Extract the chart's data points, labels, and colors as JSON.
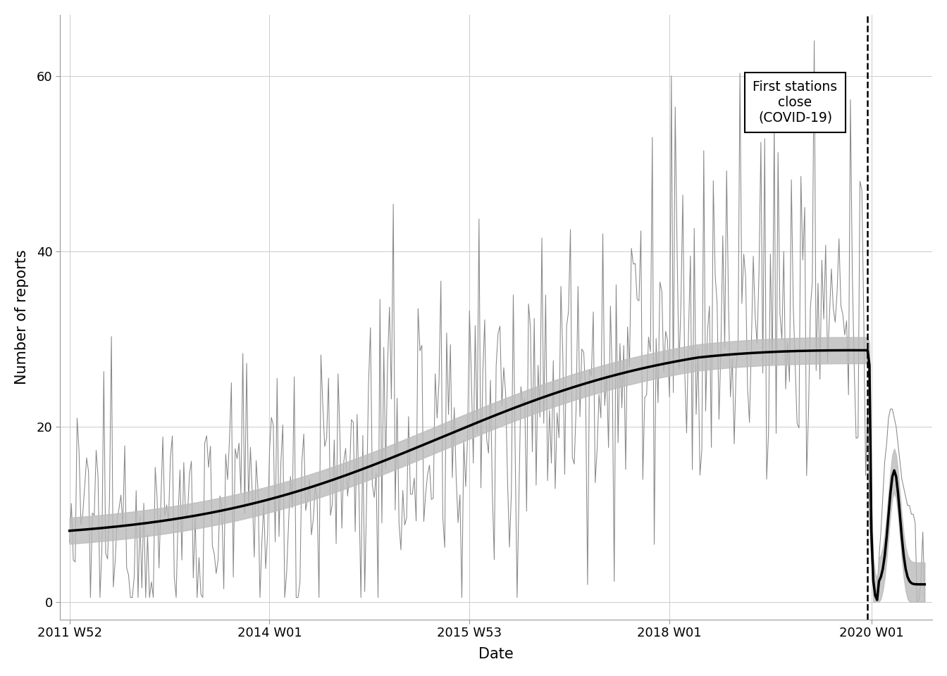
{
  "xlabel": "Date",
  "ylabel": "Number of reports",
  "ylim": [
    -2,
    67
  ],
  "yticks": [
    0,
    20,
    40,
    60
  ],
  "xtick_labels": [
    "2011 W52",
    "2014 W01",
    "2015 W53",
    "2018 W01",
    "2020 W01"
  ],
  "raw_color": "#888888",
  "smooth_color": "#000000",
  "ci_color": "#bbbbbb",
  "annotation_text": "First stations\nclose\n(COVID-19)",
  "background_color": "#ffffff",
  "grid_color": "#cccccc",
  "figsize": [
    13.44,
    9.6
  ],
  "dpi": 100,
  "n_weeks_pre": 420,
  "n_weeks_post": 30,
  "covid_week": 420
}
